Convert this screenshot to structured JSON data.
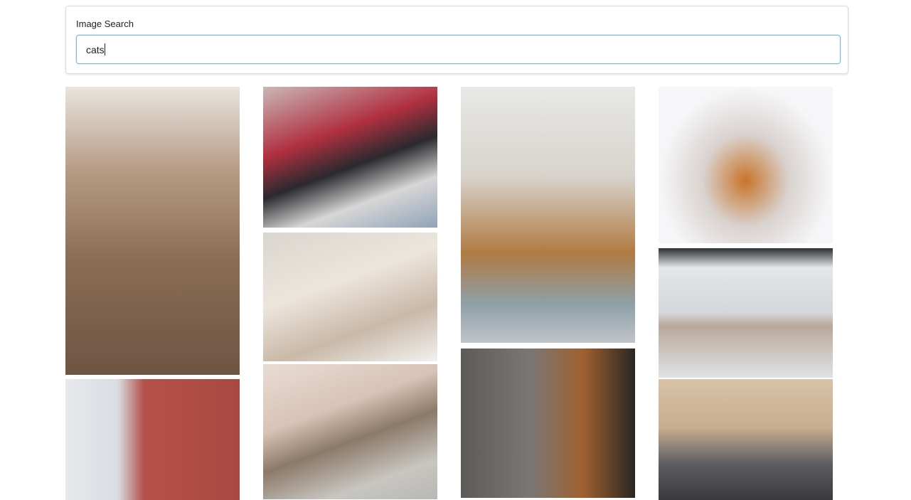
{
  "search": {
    "label": "Image Search",
    "query": "cats"
  }
}
